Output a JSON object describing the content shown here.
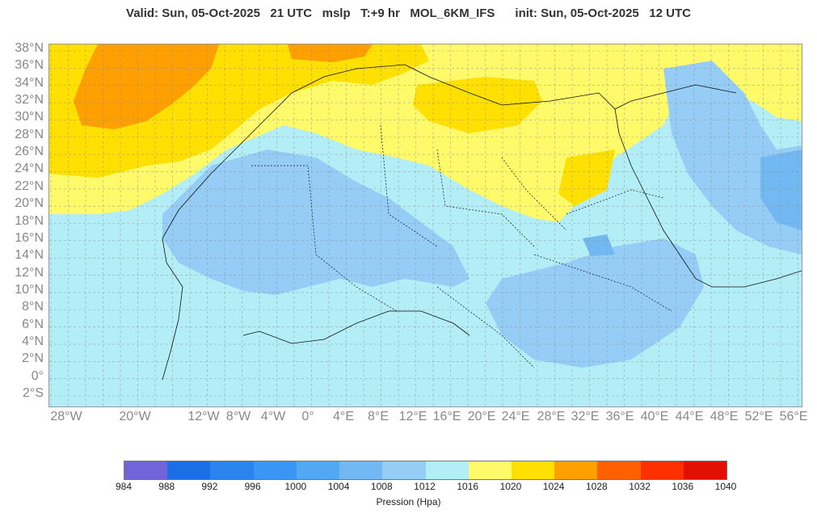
{
  "header": {
    "title": "Valid: Sun, 05-Oct-2025   21 UTC   mslp   T:+9 hr   MOL_6KM_IFS      init: Sun, 05-Oct-2025   12 UTC"
  },
  "map": {
    "lat_labels": [
      "38°N",
      "36°N",
      "34°N",
      "32°N",
      "30°N",
      "28°N",
      "26°N",
      "24°N",
      "22°N",
      "20°N",
      "18°N",
      "16°N",
      "14°N",
      "12°N",
      "10°N",
      "8°N",
      "6°N",
      "4°N",
      "2°N",
      "0°",
      "2°S"
    ],
    "lon_labels": [
      "28°W",
      "20°W",
      "12°W",
      "8°W",
      "4°W",
      "0°",
      "4°E",
      "8°E",
      "12°E",
      "16°E",
      "20°E",
      "24°E",
      "28°E",
      "32°E",
      "36°E",
      "40°E",
      "44°E",
      "48°E",
      "52°E",
      "56°E"
    ],
    "grid": true
  },
  "colorbar": {
    "colors": [
      "#7163d8",
      "#1c6ee6",
      "#2b84ee",
      "#3a96f2",
      "#52a8f2",
      "#72b8f2",
      "#96cdf6",
      "#b3eef7",
      "#fffa6a",
      "#ffe000",
      "#ffa000",
      "#ff6000",
      "#ff3000",
      "#e21000"
    ],
    "ticks": [
      "984",
      "988",
      "992",
      "996",
      "1000",
      "1004",
      "1008",
      "1012",
      "1016",
      "1020",
      "1024",
      "1028",
      "1032",
      "1036",
      "1040"
    ],
    "label": "Pression (Hpa)"
  }
}
